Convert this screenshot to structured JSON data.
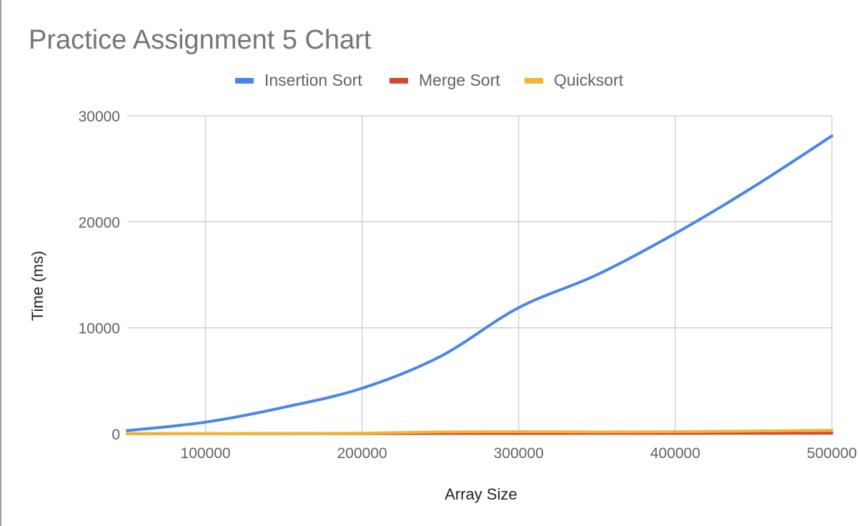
{
  "chart_data": {
    "type": "line",
    "title": "Practice Assignment 5 Chart",
    "xlabel": "Array Size",
    "ylabel": "Time (ms)",
    "x": [
      50000,
      100000,
      150000,
      200000,
      250000,
      300000,
      350000,
      400000,
      450000,
      500000
    ],
    "series": [
      {
        "name": "Insertion Sort",
        "color": "#4a86e8",
        "values": [
          300,
          1100,
          2500,
          4300,
          7300,
          11900,
          15000,
          18900,
          23300,
          28100
        ]
      },
      {
        "name": "Merge Sort",
        "color": "#d04a35",
        "values": [
          10,
          15,
          20,
          25,
          30,
          35,
          40,
          45,
          50,
          55
        ]
      },
      {
        "name": "Quicksort",
        "color": "#f1b533",
        "values": [
          20,
          30,
          40,
          60,
          180,
          200,
          180,
          200,
          260,
          330
        ]
      }
    ],
    "xticks": [
      100000,
      200000,
      300000,
      400000,
      500000
    ],
    "yticks": [
      0,
      10000,
      20000,
      30000
    ],
    "xlim": [
      50000,
      500000
    ],
    "ylim": [
      0,
      30000
    ],
    "grid": true,
    "legend_position": "top"
  }
}
